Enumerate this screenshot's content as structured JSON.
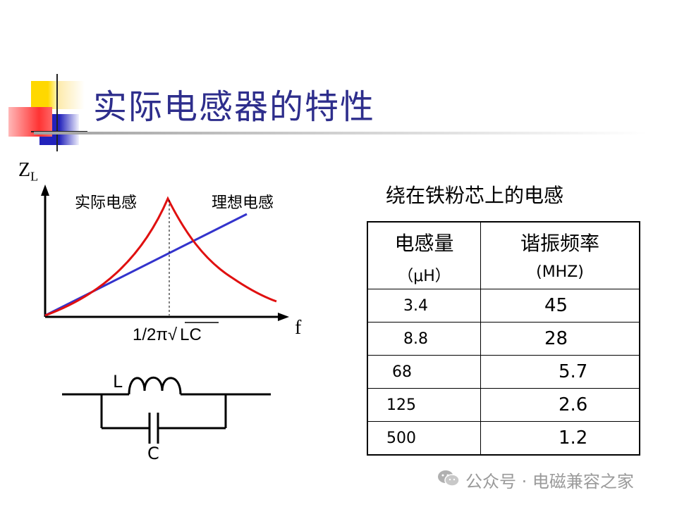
{
  "slide": {
    "title": "实际电感器的特性"
  },
  "graph": {
    "y_axis_symbol": "Z",
    "y_axis_subscript": "L",
    "x_axis_symbol": "f",
    "curve_real_label": "实际电感",
    "curve_ideal_label": "理想电感",
    "resonance_prefix": "1/2π√",
    "resonance_radicand": "LC",
    "colors": {
      "real": "#e01010",
      "ideal": "#3333cc"
    }
  },
  "circuit": {
    "inductor_label": "L",
    "capacitor_label": "C"
  },
  "table": {
    "caption": "绕在铁粉芯上的电感",
    "headers": [
      {
        "main": "电感量",
        "unit": "（μH）"
      },
      {
        "main": "谐振频率",
        "unit": "(MHZ)"
      }
    ],
    "rows": [
      {
        "inductance": "3.4",
        "frequency": "45"
      },
      {
        "inductance": "8.8",
        "frequency": "28"
      },
      {
        "inductance": "68",
        "frequency": "5.7"
      },
      {
        "inductance": "125",
        "frequency": "2.6"
      },
      {
        "inductance": "500",
        "frequency": "1.2"
      }
    ]
  },
  "watermark": {
    "text": "公众号 · 电磁兼容之家",
    "icon": "wechat-icon"
  },
  "decor": {
    "square_colors": [
      "#ffd800",
      "#2222bb",
      "#ff3333"
    ]
  }
}
